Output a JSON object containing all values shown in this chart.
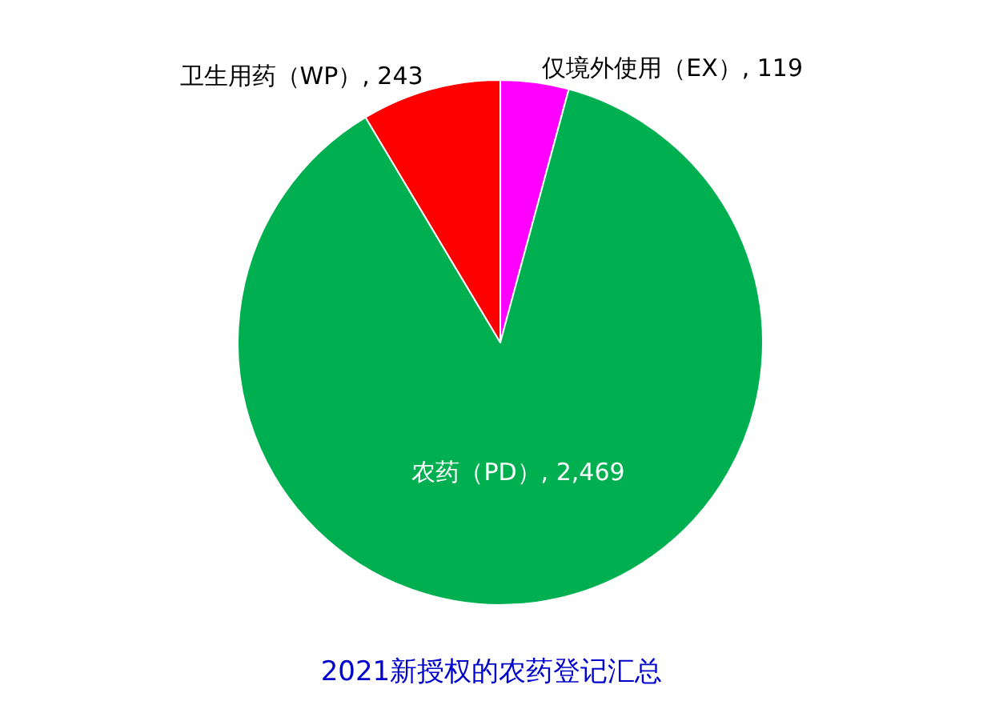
{
  "chart_data": {
    "type": "pie",
    "title": "2021新授权的农药登记汇总",
    "categories": [
      "仅境外使用（EX）",
      "农药（PD）",
      "卫生用药（WP）"
    ],
    "values": [
      119,
      2469,
      243
    ],
    "colors": [
      "#ff00ff",
      "#00b050",
      "#ff0000"
    ],
    "value_labels": [
      "119",
      "2,469",
      "243"
    ],
    "legend": false
  }
}
